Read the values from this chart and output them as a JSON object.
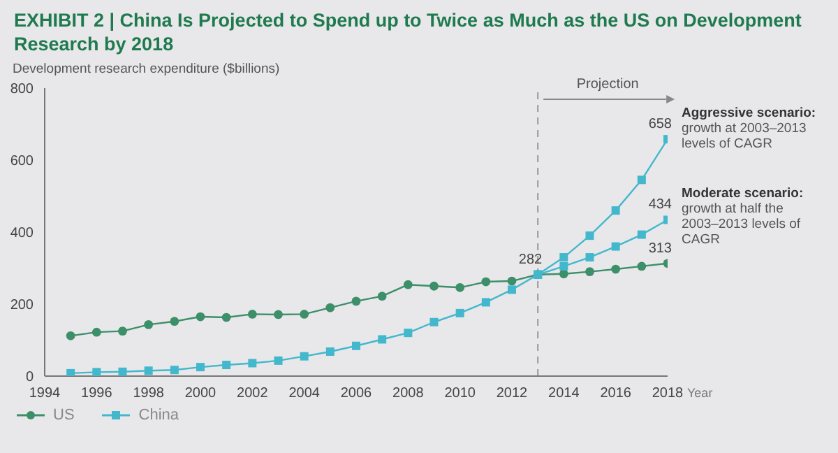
{
  "chart_data": {
    "type": "line",
    "title": "EXHIBIT 2 | China Is Projected to Spend up to Twice as Much as the US on Development Research by 2018",
    "ylabel": "Development research expenditure ($billions)",
    "xlabel": "Year",
    "x": [
      1995,
      1996,
      1997,
      1998,
      1999,
      2000,
      2001,
      2002,
      2003,
      2004,
      2005,
      2006,
      2007,
      2008,
      2009,
      2010,
      2011,
      2012,
      2013,
      2014,
      2015,
      2016,
      2017,
      2018
    ],
    "series": [
      {
        "name": "US",
        "color": "#3d8f6a",
        "marker": "circle",
        "values": [
          112,
          122,
          125,
          143,
          152,
          165,
          163,
          172,
          171,
          172,
          190,
          208,
          222,
          254,
          250,
          246,
          262,
          264,
          282,
          284,
          290,
          297,
          305,
          313
        ],
        "value_labels": [
          null,
          null,
          null,
          null,
          null,
          null,
          null,
          null,
          null,
          null,
          null,
          null,
          null,
          null,
          null,
          null,
          null,
          null,
          null,
          null,
          null,
          null,
          null,
          "313"
        ]
      },
      {
        "name": "China",
        "color": "#43b8cc",
        "marker": "square",
        "values": [
          8,
          11,
          12,
          15,
          17,
          25,
          31,
          36,
          43,
          55,
          68,
          84,
          102,
          120,
          150,
          175,
          205,
          240,
          282,
          null,
          null,
          null,
          null,
          null
        ],
        "value_labels": [
          null,
          null,
          null,
          null,
          null,
          null,
          null,
          null,
          null,
          null,
          null,
          null,
          null,
          null,
          null,
          null,
          null,
          null,
          "282",
          null,
          null,
          null,
          null,
          null
        ]
      },
      {
        "color": "#43b8cc",
        "marker": "square",
        "values": [
          null,
          null,
          null,
          null,
          null,
          null,
          null,
          null,
          null,
          null,
          null,
          null,
          null,
          null,
          null,
          null,
          null,
          null,
          282,
          330,
          390,
          460,
          545,
          658
        ],
        "value_labels": [
          null,
          null,
          null,
          null,
          null,
          null,
          null,
          null,
          null,
          null,
          null,
          null,
          null,
          null,
          null,
          null,
          null,
          null,
          null,
          null,
          null,
          null,
          null,
          "658"
        ]
      },
      {
        "color": "#43b8cc",
        "marker": "square",
        "values": [
          null,
          null,
          null,
          null,
          null,
          null,
          null,
          null,
          null,
          null,
          null,
          null,
          null,
          null,
          null,
          null,
          null,
          null,
          282,
          305,
          330,
          360,
          393,
          434
        ],
        "value_labels": [
          null,
          null,
          null,
          null,
          null,
          null,
          null,
          null,
          null,
          null,
          null,
          null,
          null,
          null,
          null,
          null,
          null,
          null,
          null,
          null,
          null,
          null,
          null,
          "434"
        ]
      }
    ],
    "xlim": [
      1994,
      2018
    ],
    "xticks": [
      1994,
      1996,
      1998,
      2000,
      2002,
      2004,
      2006,
      2008,
      2010,
      2012,
      2014,
      2016,
      2018
    ],
    "ylim": [
      0,
      800
    ],
    "yticks": [
      0,
      200,
      400,
      600,
      800
    ],
    "ref_lines": [
      {
        "axis": "x",
        "value": 2013,
        "label": "Projection",
        "line_style": "dashed",
        "color": "#999999"
      }
    ],
    "annotations": [
      {
        "text": "Aggressive scenario: growth at 2003–2013 levels of CAGR",
        "x": 2018,
        "y": 658
      },
      {
        "text": "Moderate scenario: growth at half the 2003–2013 levels of CAGR",
        "x": 2018,
        "y": 434
      }
    ],
    "grid": false,
    "legend": "bottom left"
  }
}
